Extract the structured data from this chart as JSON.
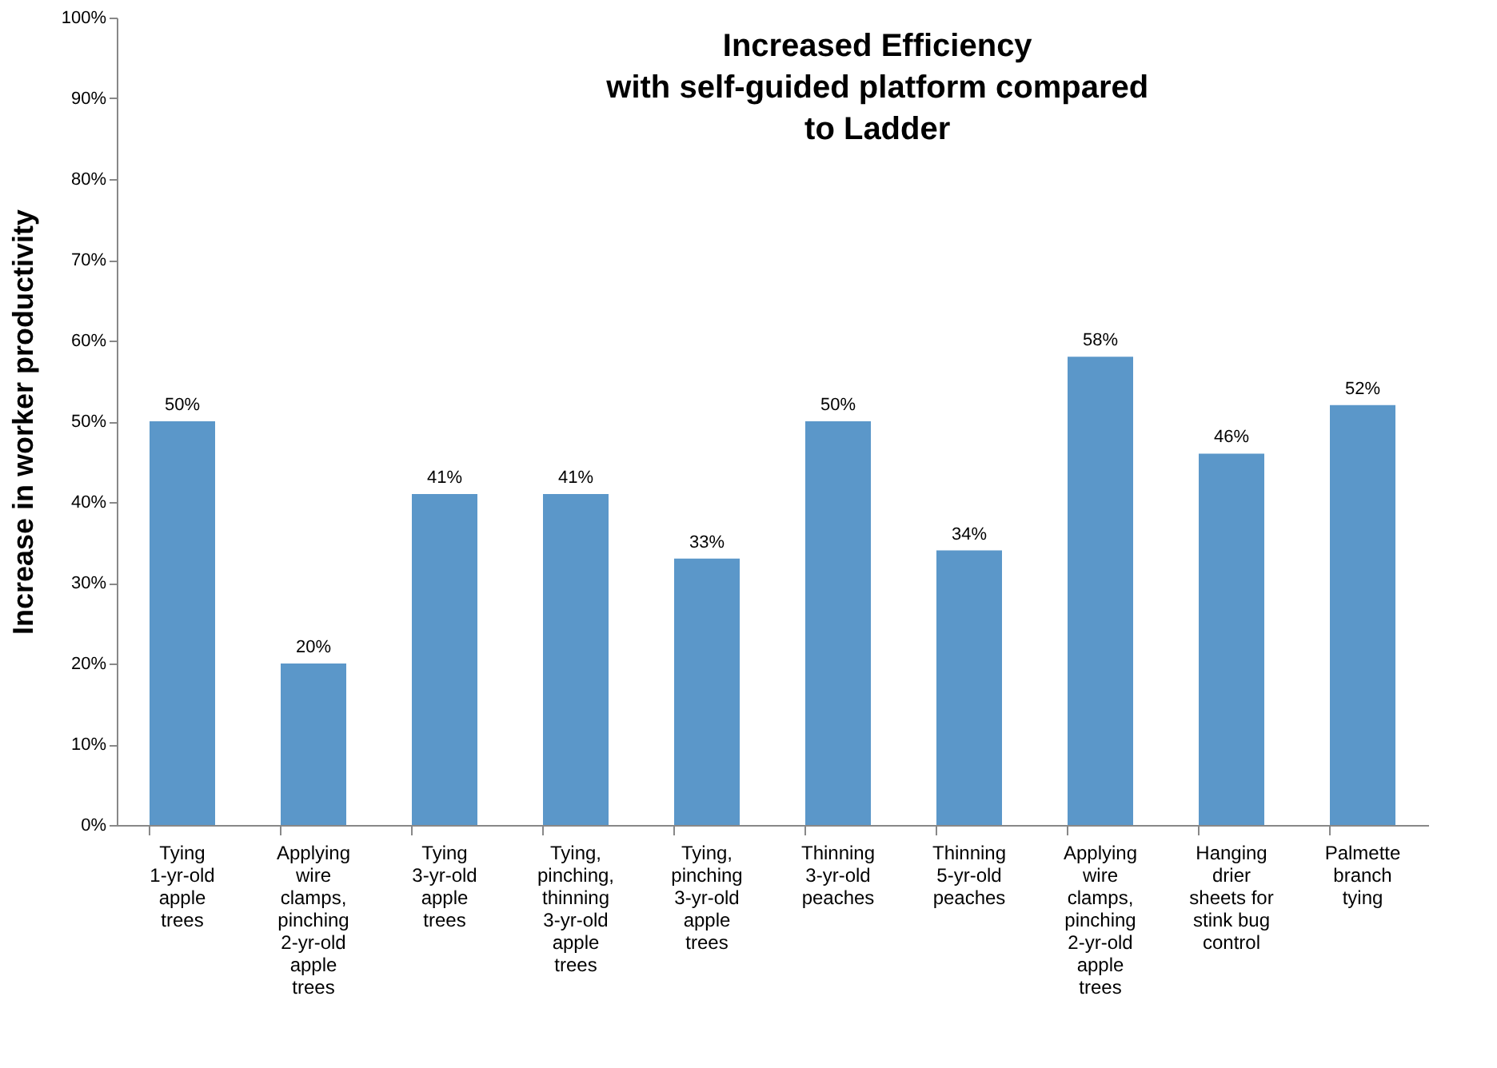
{
  "chart_data": {
    "type": "bar",
    "title": "Increased Efficiency\nwith self-guided platform compared\nto Ladder",
    "ylabel": "Increase in worker productivity",
    "categories": [
      "Tying\n1-yr-old\napple\ntrees",
      "Applying\nwire\nclamps,\npinching\n2-yr-old\napple\ntrees",
      "Tying\n3-yr-old\napple\ntrees",
      "Tying,\npinching,\nthinning\n3-yr-old\napple\ntrees",
      "Tying,\npinching\n3-yr-old\napple\ntrees",
      "Thinning\n3-yr-old\npeaches",
      "Thinning\n5-yr-old\npeaches",
      "Applying\nwire\nclamps,\npinching\n2-yr-old\napple\ntrees",
      "Hanging\ndrier\nsheets for\nstink bug\ncontrol",
      "Palmette\nbranch\ntying"
    ],
    "values": [
      50,
      20,
      41,
      41,
      33,
      50,
      34,
      58,
      46,
      52
    ],
    "value_labels": [
      "50%",
      "20%",
      "41%",
      "41%",
      "33%",
      "50%",
      "34%",
      "58%",
      "46%",
      "52%"
    ],
    "color": "#5b97c9",
    "ylim": [
      0,
      100
    ],
    "yticks": [
      {
        "value": 0,
        "label": "0%"
      },
      {
        "value": 10,
        "label": "10%"
      },
      {
        "value": 20,
        "label": "20%"
      },
      {
        "value": 30,
        "label": "30%"
      },
      {
        "value": 40,
        "label": "40%"
      },
      {
        "value": 50,
        "label": "50%"
      },
      {
        "value": 60,
        "label": "60%"
      },
      {
        "value": 70,
        "label": "70%"
      },
      {
        "value": 80,
        "label": "80%"
      },
      {
        "value": 90,
        "label": "90%"
      },
      {
        "value": 100,
        "label": "100%"
      }
    ],
    "grid": false
  }
}
